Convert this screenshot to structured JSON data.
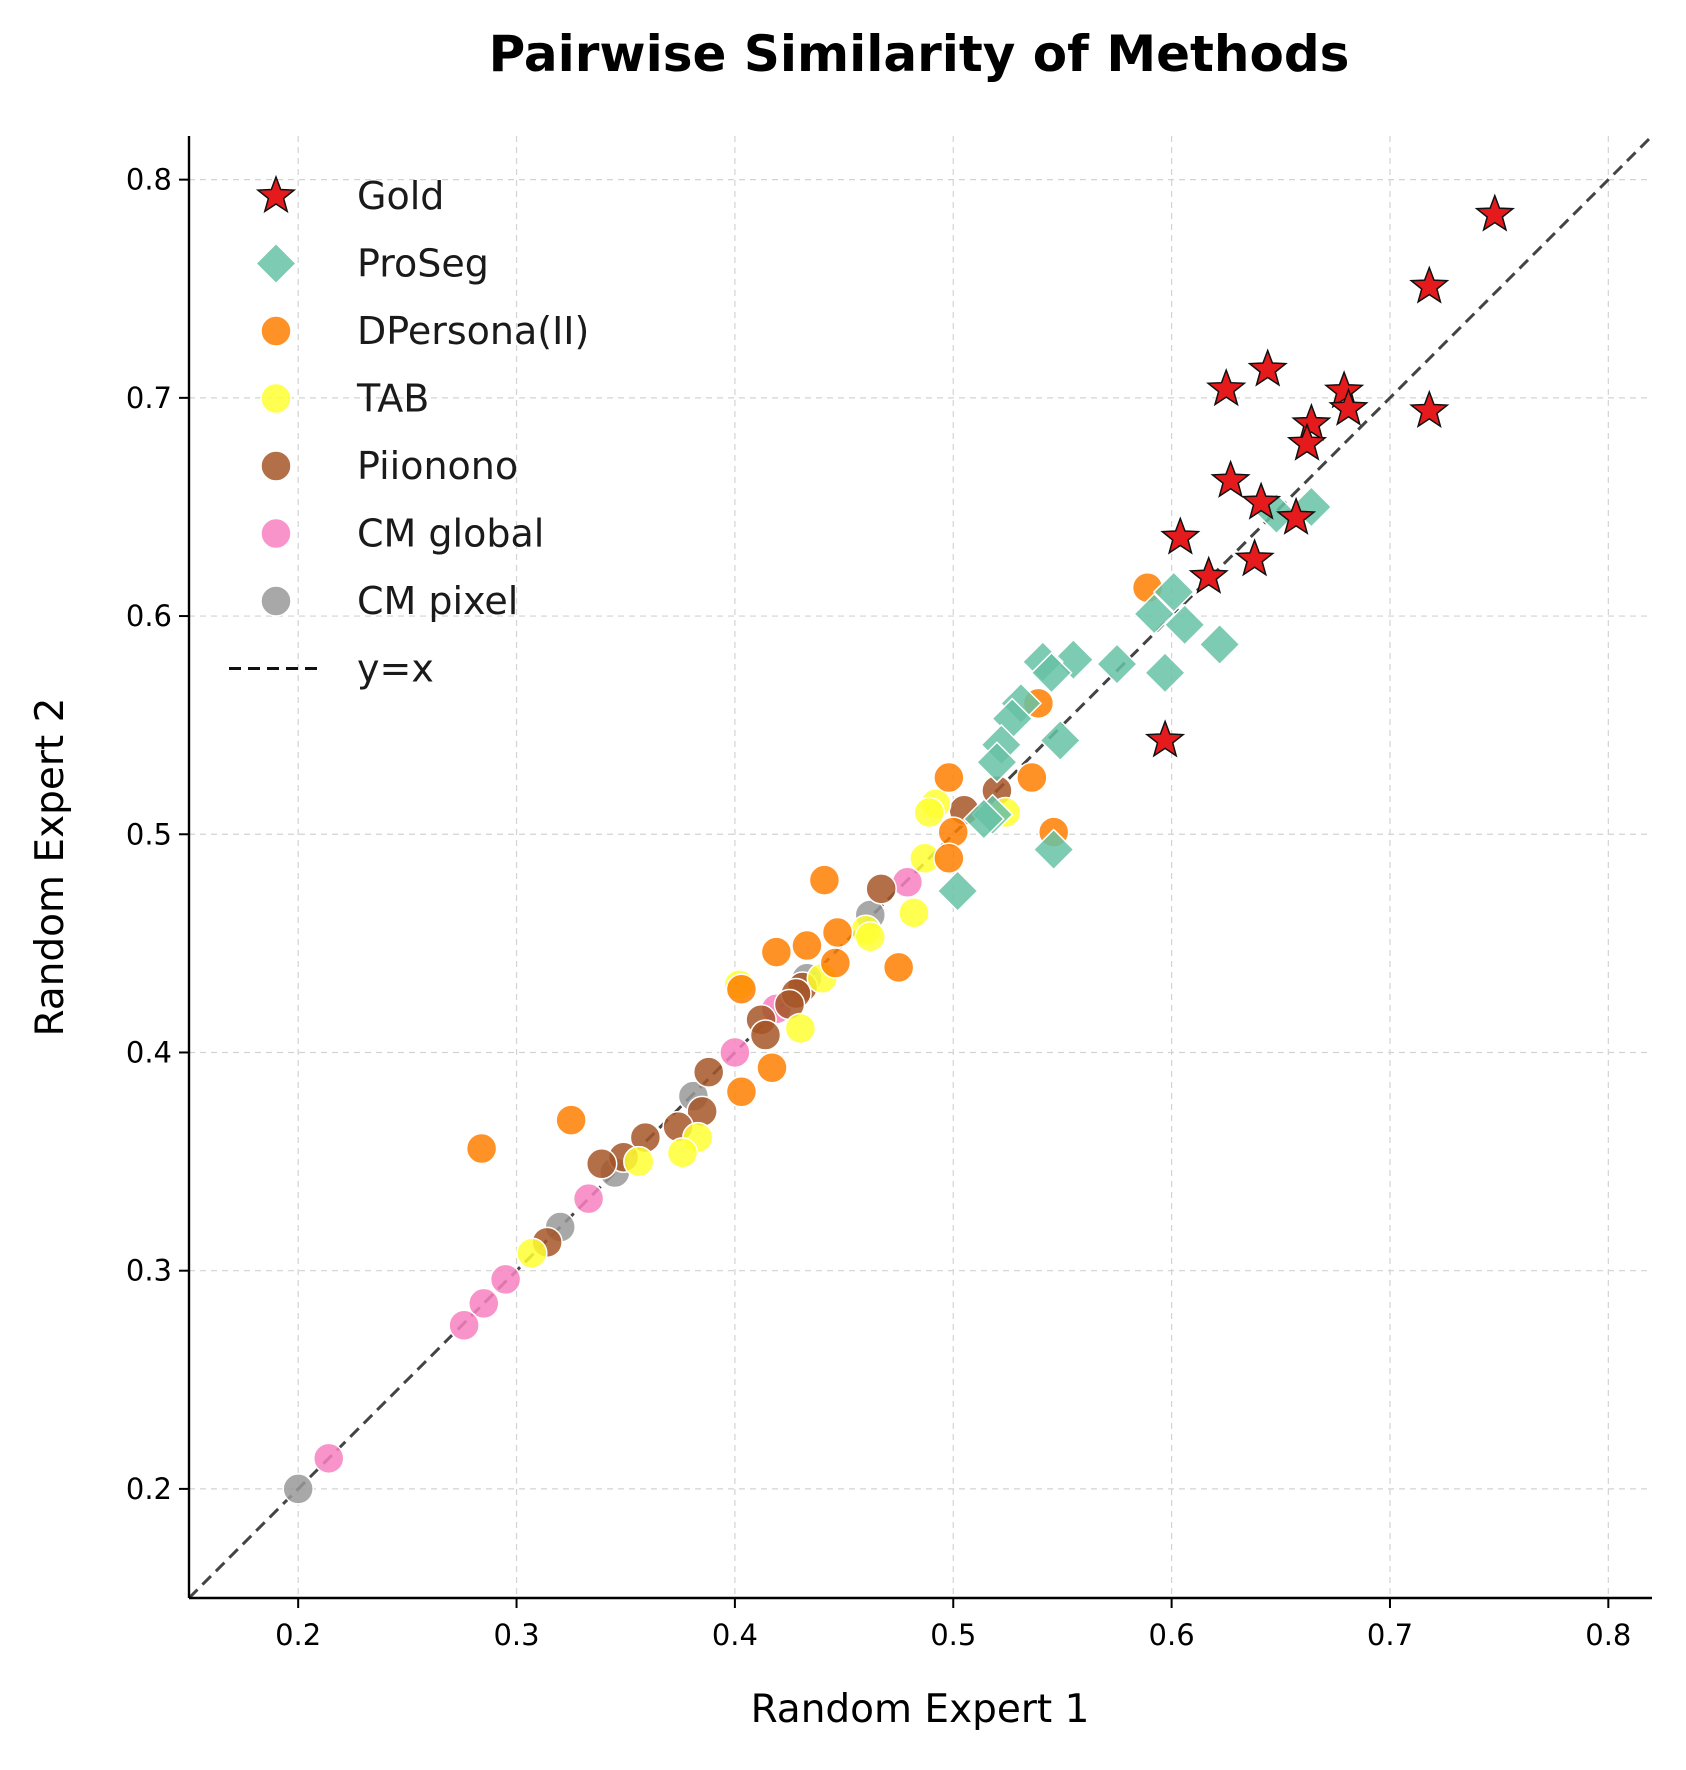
{
  "chart_data": {
    "type": "scatter",
    "title": "Pairwise Similarity of Methods",
    "xlabel": "Random Expert 1",
    "ylabel": "Random Expert 2",
    "xlim": [
      0.15,
      0.82
    ],
    "ylim": [
      0.15,
      0.82
    ],
    "xticks": [
      "0.2",
      "0.3",
      "0.4",
      "0.5",
      "0.6",
      "0.7",
      "0.8"
    ],
    "yticks": [
      "0.2",
      "0.3",
      "0.4",
      "0.5",
      "0.6",
      "0.7",
      "0.8"
    ],
    "grid": true,
    "legend_position": "top-left",
    "reference_line": {
      "label": "y=x",
      "style": "dashed",
      "color": "#444444"
    },
    "series": [
      {
        "name": "Gold",
        "marker": "star",
        "color": "#e41a1c",
        "points": [
          [
            0.748,
            0.784
          ],
          [
            0.718,
            0.751
          ],
          [
            0.718,
            0.694
          ],
          [
            0.644,
            0.713
          ],
          [
            0.625,
            0.704
          ],
          [
            0.679,
            0.703
          ],
          [
            0.681,
            0.695
          ],
          [
            0.664,
            0.688
          ],
          [
            0.662,
            0.679
          ],
          [
            0.627,
            0.662
          ],
          [
            0.641,
            0.652
          ],
          [
            0.657,
            0.645
          ],
          [
            0.604,
            0.636
          ],
          [
            0.638,
            0.626
          ],
          [
            0.617,
            0.618
          ],
          [
            0.597,
            0.543
          ]
        ]
      },
      {
        "name": "ProSeg",
        "marker": "diamond",
        "color": "#66c2a5",
        "points": [
          [
            0.664,
            0.65
          ],
          [
            0.648,
            0.647
          ],
          [
            0.601,
            0.611
          ],
          [
            0.592,
            0.601
          ],
          [
            0.606,
            0.596
          ],
          [
            0.622,
            0.587
          ],
          [
            0.555,
            0.58
          ],
          [
            0.541,
            0.579
          ],
          [
            0.575,
            0.578
          ],
          [
            0.545,
            0.574
          ],
          [
            0.597,
            0.574
          ],
          [
            0.531,
            0.56
          ],
          [
            0.527,
            0.553
          ],
          [
            0.549,
            0.543
          ],
          [
            0.522,
            0.541
          ],
          [
            0.52,
            0.533
          ],
          [
            0.518,
            0.509
          ],
          [
            0.514,
            0.507
          ],
          [
            0.546,
            0.493
          ],
          [
            0.502,
            0.474
          ]
        ]
      },
      {
        "name": "DPersona(II)",
        "marker": "circle",
        "color": "#ff7f00",
        "points": [
          [
            0.589,
            0.613
          ],
          [
            0.539,
            0.56
          ],
          [
            0.536,
            0.526
          ],
          [
            0.498,
            0.526
          ],
          [
            0.546,
            0.501
          ],
          [
            0.5,
            0.501
          ],
          [
            0.498,
            0.489
          ],
          [
            0.441,
            0.479
          ],
          [
            0.475,
            0.439
          ],
          [
            0.419,
            0.446
          ],
          [
            0.433,
            0.449
          ],
          [
            0.447,
            0.455
          ],
          [
            0.446,
            0.441
          ],
          [
            0.403,
            0.429
          ],
          [
            0.417,
            0.393
          ],
          [
            0.403,
            0.382
          ],
          [
            0.325,
            0.369
          ],
          [
            0.284,
            0.356
          ]
        ]
      },
      {
        "name": "TAB",
        "marker": "circle",
        "color": "#ffff33",
        "points": [
          [
            0.492,
            0.514
          ],
          [
            0.489,
            0.51
          ],
          [
            0.524,
            0.51
          ],
          [
            0.487,
            0.489
          ],
          [
            0.482,
            0.464
          ],
          [
            0.46,
            0.456
          ],
          [
            0.462,
            0.453
          ],
          [
            0.44,
            0.434
          ],
          [
            0.402,
            0.431
          ],
          [
            0.43,
            0.411
          ],
          [
            0.383,
            0.361
          ],
          [
            0.376,
            0.354
          ],
          [
            0.356,
            0.35
          ],
          [
            0.307,
            0.308
          ]
        ]
      },
      {
        "name": "Piionono",
        "marker": "circle",
        "color": "#a65628",
        "points": [
          [
            0.52,
            0.52
          ],
          [
            0.505,
            0.511
          ],
          [
            0.467,
            0.475
          ],
          [
            0.431,
            0.43
          ],
          [
            0.428,
            0.427
          ],
          [
            0.425,
            0.422
          ],
          [
            0.412,
            0.415
          ],
          [
            0.414,
            0.408
          ],
          [
            0.388,
            0.391
          ],
          [
            0.385,
            0.373
          ],
          [
            0.359,
            0.361
          ],
          [
            0.349,
            0.352
          ],
          [
            0.374,
            0.366
          ],
          [
            0.339,
            0.349
          ],
          [
            0.314,
            0.313
          ]
        ]
      },
      {
        "name": "CM global",
        "marker": "circle",
        "color": "#f781bf",
        "points": [
          [
            0.479,
            0.478
          ],
          [
            0.419,
            0.42
          ],
          [
            0.4,
            0.4
          ],
          [
            0.333,
            0.333
          ],
          [
            0.295,
            0.296
          ],
          [
            0.285,
            0.285
          ],
          [
            0.276,
            0.275
          ],
          [
            0.214,
            0.214
          ]
        ]
      },
      {
        "name": "CM pixel",
        "marker": "circle",
        "color": "#999999",
        "points": [
          [
            0.462,
            0.463
          ],
          [
            0.433,
            0.434
          ],
          [
            0.381,
            0.38
          ],
          [
            0.345,
            0.345
          ],
          [
            0.32,
            0.32
          ],
          [
            0.2,
            0.2
          ]
        ]
      }
    ]
  }
}
